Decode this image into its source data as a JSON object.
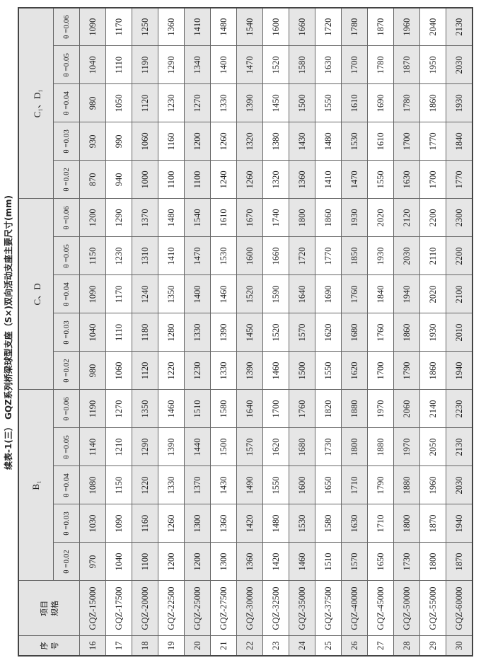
{
  "title": "续表-1(三） GQZ系列桥梁球型支座（S×)双向活动支座主要尺寸(mm)",
  "headers": {
    "no": [
      "序",
      "号"
    ],
    "spec": [
      "项目",
      "规格"
    ],
    "groups": [
      "B₁",
      "C、D",
      "C₁、D₁"
    ],
    "theta": [
      "θ =0.02",
      "θ =0.03",
      "θ =0.04",
      "θ =0.05",
      "θ =0.06"
    ]
  },
  "colors": {
    "header_bg": "#e4e4e4",
    "shaded_row_bg": "#e6e6e6",
    "border": "#666666"
  },
  "rows": [
    {
      "no": "16",
      "spec": "GQZ-15000",
      "b1": [
        "970",
        "1030",
        "1080",
        "1140",
        "1190"
      ],
      "cd": [
        "980",
        "1040",
        "1090",
        "1150",
        "1200"
      ],
      "c1d1": [
        "870",
        "930",
        "980",
        "1040",
        "1090"
      ]
    },
    {
      "no": "17",
      "spec": "GQZ-17500",
      "b1": [
        "1040",
        "1090",
        "1150",
        "1210",
        "1270"
      ],
      "cd": [
        "1060",
        "1110",
        "1170",
        "1230",
        "1290"
      ],
      "c1d1": [
        "940",
        "990",
        "1050",
        "1110",
        "1170"
      ]
    },
    {
      "no": "18",
      "spec": "GQZ-20000",
      "b1": [
        "1100",
        "1160",
        "1220",
        "1290",
        "1350"
      ],
      "cd": [
        "1120",
        "1180",
        "1240",
        "1310",
        "1370"
      ],
      "c1d1": [
        "1000",
        "1060",
        "1120",
        "1190",
        "1250"
      ]
    },
    {
      "no": "19",
      "spec": "GQZ-22500",
      "b1": [
        "1200",
        "1260",
        "1330",
        "1390",
        "1460"
      ],
      "cd": [
        "1220",
        "1280",
        "1350",
        "1410",
        "1480"
      ],
      "c1d1": [
        "1100",
        "1160",
        "1230",
        "1290",
        "1360"
      ]
    },
    {
      "no": "20",
      "spec": "GQZ-25000",
      "b1": [
        "1200",
        "1300",
        "1370",
        "1440",
        "1510"
      ],
      "cd": [
        "1230",
        "1330",
        "1400",
        "1470",
        "1540"
      ],
      "c1d1": [
        "1100",
        "1200",
        "1270",
        "1340",
        "1410"
      ]
    },
    {
      "no": "21",
      "spec": "GQZ-27500",
      "b1": [
        "1300",
        "1360",
        "1430",
        "1500",
        "1580"
      ],
      "cd": [
        "1330",
        "1390",
        "1460",
        "1530",
        "1610"
      ],
      "c1d1": [
        "1240",
        "1260",
        "1330",
        "1400",
        "1480"
      ]
    },
    {
      "no": "22",
      "spec": "GQZ-30000",
      "b1": [
        "1360",
        "1420",
        "1490",
        "1570",
        "1640"
      ],
      "cd": [
        "1390",
        "1450",
        "1520",
        "1600",
        "1670"
      ],
      "c1d1": [
        "1260",
        "1320",
        "1390",
        "1470",
        "1540"
      ]
    },
    {
      "no": "23",
      "spec": "GQZ-32500",
      "b1": [
        "1420",
        "1480",
        "1550",
        "1620",
        "1700"
      ],
      "cd": [
        "1460",
        "1520",
        "1590",
        "1660",
        "1740"
      ],
      "c1d1": [
        "1320",
        "1380",
        "1450",
        "1520",
        "1600"
      ]
    },
    {
      "no": "24",
      "spec": "GQZ-35000",
      "b1": [
        "1460",
        "1530",
        "1600",
        "1680",
        "1760"
      ],
      "cd": [
        "1500",
        "1570",
        "1640",
        "1720",
        "1800"
      ],
      "c1d1": [
        "1360",
        "1430",
        "1500",
        "1580",
        "1660"
      ]
    },
    {
      "no": "25",
      "spec": "GQZ-37500",
      "b1": [
        "1510",
        "1580",
        "1650",
        "1730",
        "1820"
      ],
      "cd": [
        "1550",
        "1620",
        "1690",
        "1770",
        "1860"
      ],
      "c1d1": [
        "1410",
        "1480",
        "1550",
        "1630",
        "1720"
      ]
    },
    {
      "no": "26",
      "spec": "GQZ-40000",
      "b1": [
        "1570",
        "1630",
        "1710",
        "1800",
        "1880"
      ],
      "cd": [
        "1620",
        "1680",
        "1760",
        "1850",
        "1930"
      ],
      "c1d1": [
        "1470",
        "1530",
        "1610",
        "1700",
        "1780"
      ]
    },
    {
      "no": "27",
      "spec": "GQZ-45000",
      "b1": [
        "1650",
        "1710",
        "1790",
        "1880",
        "1970"
      ],
      "cd": [
        "1700",
        "1760",
        "1840",
        "1930",
        "2020"
      ],
      "c1d1": [
        "1550",
        "1610",
        "1690",
        "1780",
        "1870"
      ]
    },
    {
      "no": "28",
      "spec": "GQZ-50000",
      "b1": [
        "1730",
        "1800",
        "1880",
        "1970",
        "2060"
      ],
      "cd": [
        "1790",
        "1860",
        "1940",
        "2030",
        "2120"
      ],
      "c1d1": [
        "1630",
        "1700",
        "1780",
        "1870",
        "1960"
      ]
    },
    {
      "no": "29",
      "spec": "GQZ-55000",
      "b1": [
        "1800",
        "1870",
        "1960",
        "2050",
        "2140"
      ],
      "cd": [
        "1860",
        "1930",
        "2020",
        "2110",
        "2200"
      ],
      "c1d1": [
        "1700",
        "1770",
        "1860",
        "1950",
        "2040"
      ]
    },
    {
      "no": "30",
      "spec": "GQZ-60000",
      "b1": [
        "1870",
        "1940",
        "2030",
        "2130",
        "2230"
      ],
      "cd": [
        "1940",
        "2010",
        "2100",
        "2200",
        "2300"
      ],
      "c1d1": [
        "1770",
        "1840",
        "1930",
        "2030",
        "2130"
      ]
    }
  ]
}
